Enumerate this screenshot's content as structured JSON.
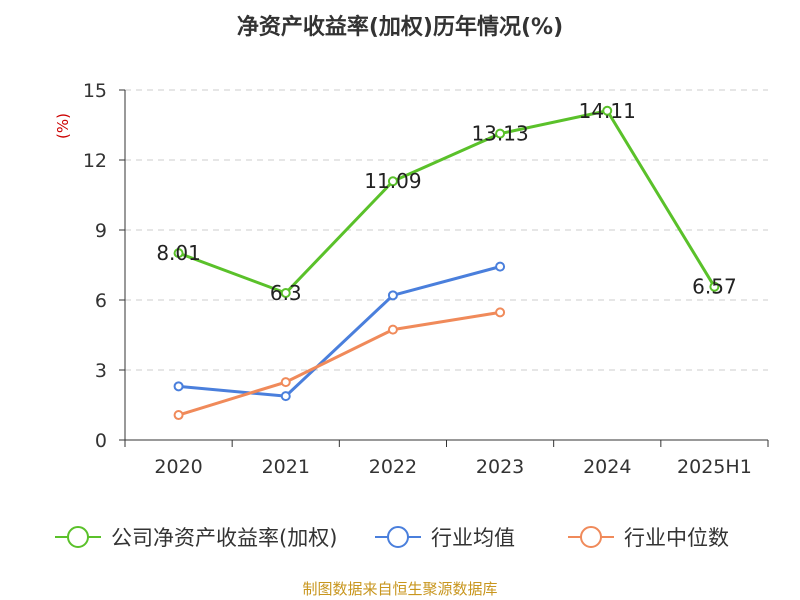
{
  "chart_data": {
    "type": "line",
    "title": "净资产收益率(加权)历年情况(%)",
    "ylabel": "(%)",
    "categories": [
      "2020",
      "2021",
      "2022",
      "2023",
      "2024",
      "2025H1"
    ],
    "ylim": [
      0,
      15
    ],
    "yticks": [
      0,
      3,
      6,
      9,
      12,
      15
    ],
    "grid": true,
    "legend_position": "bottom",
    "series": [
      {
        "name": "公司净资产收益率(加权)",
        "color": "#5ac12a",
        "values": [
          8.01,
          6.3,
          11.09,
          13.13,
          14.11,
          6.57
        ],
        "data_labels": [
          "8.01",
          "6.3",
          "11.09",
          "13.13",
          "14.11",
          "6.57"
        ]
      },
      {
        "name": "行业均值",
        "color": "#4a7fdc",
        "values": [
          2.3,
          1.88,
          6.2,
          7.43,
          null,
          null
        ]
      },
      {
        "name": "行业中位数",
        "color": "#f08a5a",
        "values": [
          1.07,
          2.48,
          4.73,
          5.47,
          null,
          null
        ]
      }
    ],
    "source": "制图数据来自恒生聚源数据库"
  }
}
